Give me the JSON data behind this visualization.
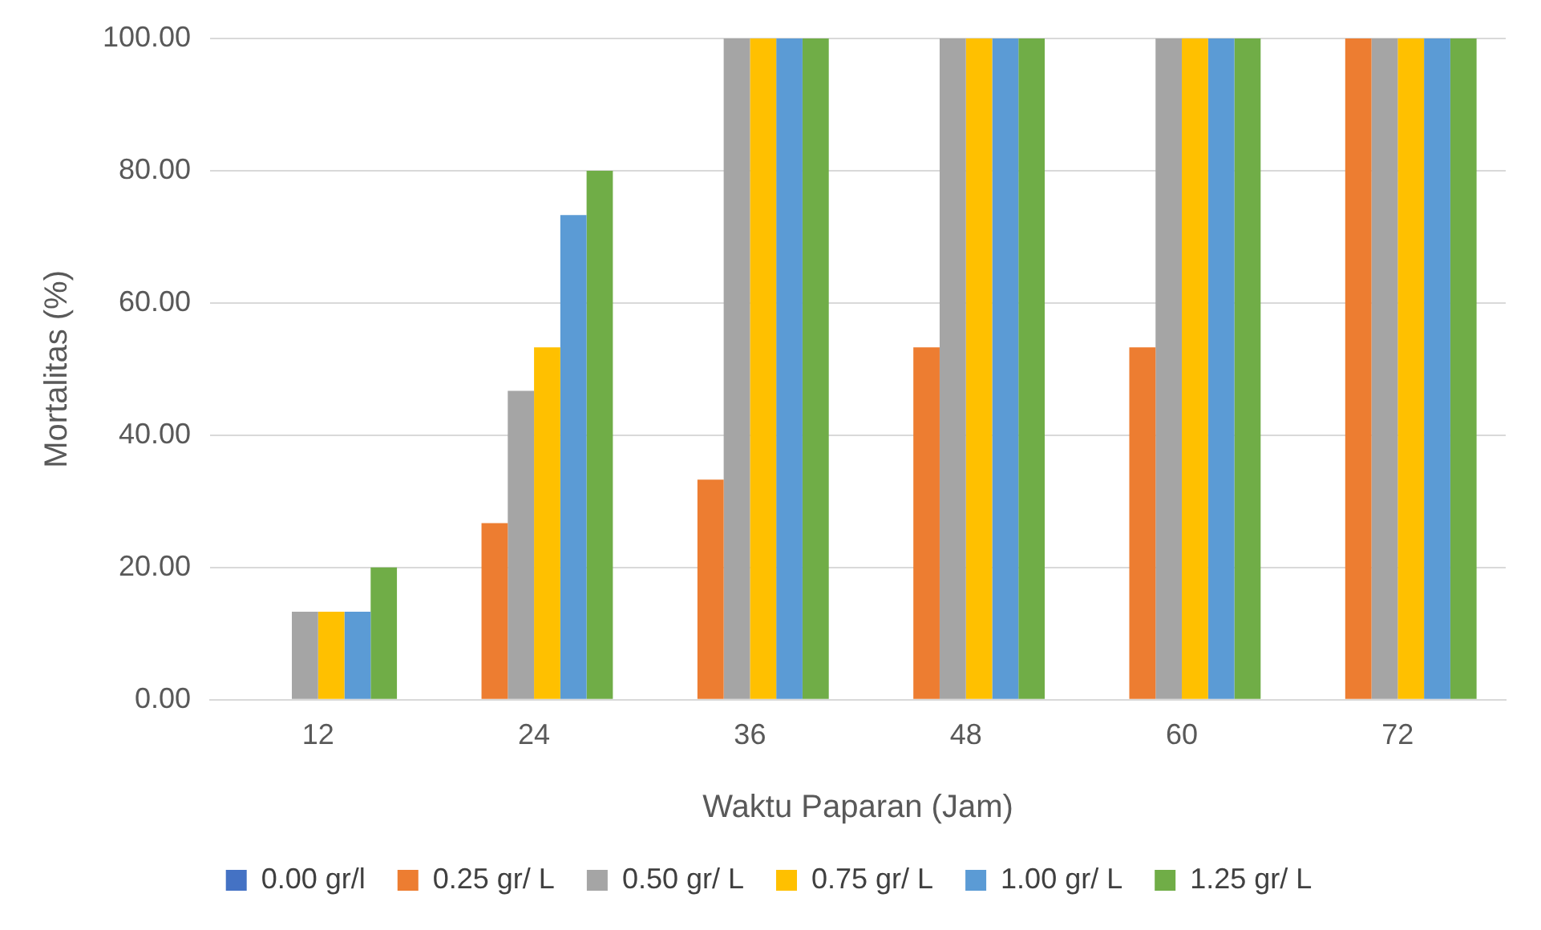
{
  "chart_data": {
    "type": "bar",
    "xlabel": "Waktu Paparan (Jam)",
    "ylabel": "Mortalitas (%)",
    "categories": [
      "12",
      "24",
      "36",
      "48",
      "60",
      "72"
    ],
    "series": [
      {
        "name": "0.00 gr/l",
        "color": "#4472c4",
        "values": [
          0,
          0,
          0,
          0,
          0,
          0
        ]
      },
      {
        "name": "0.25 gr/ L",
        "color": "#ed7d31",
        "values": [
          0,
          26.7,
          33.3,
          53.3,
          53.3,
          100
        ]
      },
      {
        "name": "0.50 gr/ L",
        "color": "#a5a5a5",
        "values": [
          13.3,
          46.7,
          100,
          100,
          100,
          100
        ]
      },
      {
        "name": "0.75 gr/ L",
        "color": "#ffc000",
        "values": [
          13.3,
          53.3,
          100,
          100,
          100,
          100
        ]
      },
      {
        "name": "1.00 gr/ L",
        "color": "#5b9bd5",
        "values": [
          13.3,
          73.3,
          100,
          100,
          100,
          100
        ]
      },
      {
        "name": "1.25 gr/ L",
        "color": "#70ad47",
        "values": [
          20,
          80,
          100,
          100,
          100,
          100
        ]
      }
    ],
    "ylim": [
      0,
      100
    ],
    "yticks": [
      {
        "value": 0,
        "label": "0.00"
      },
      {
        "value": 20,
        "label": "20.00"
      },
      {
        "value": 40,
        "label": "40.00"
      },
      {
        "value": 60,
        "label": "60.00"
      },
      {
        "value": 80,
        "label": "80.00"
      },
      {
        "value": 100,
        "label": "100.00"
      }
    ],
    "grid": "y",
    "legend": "bottom"
  }
}
